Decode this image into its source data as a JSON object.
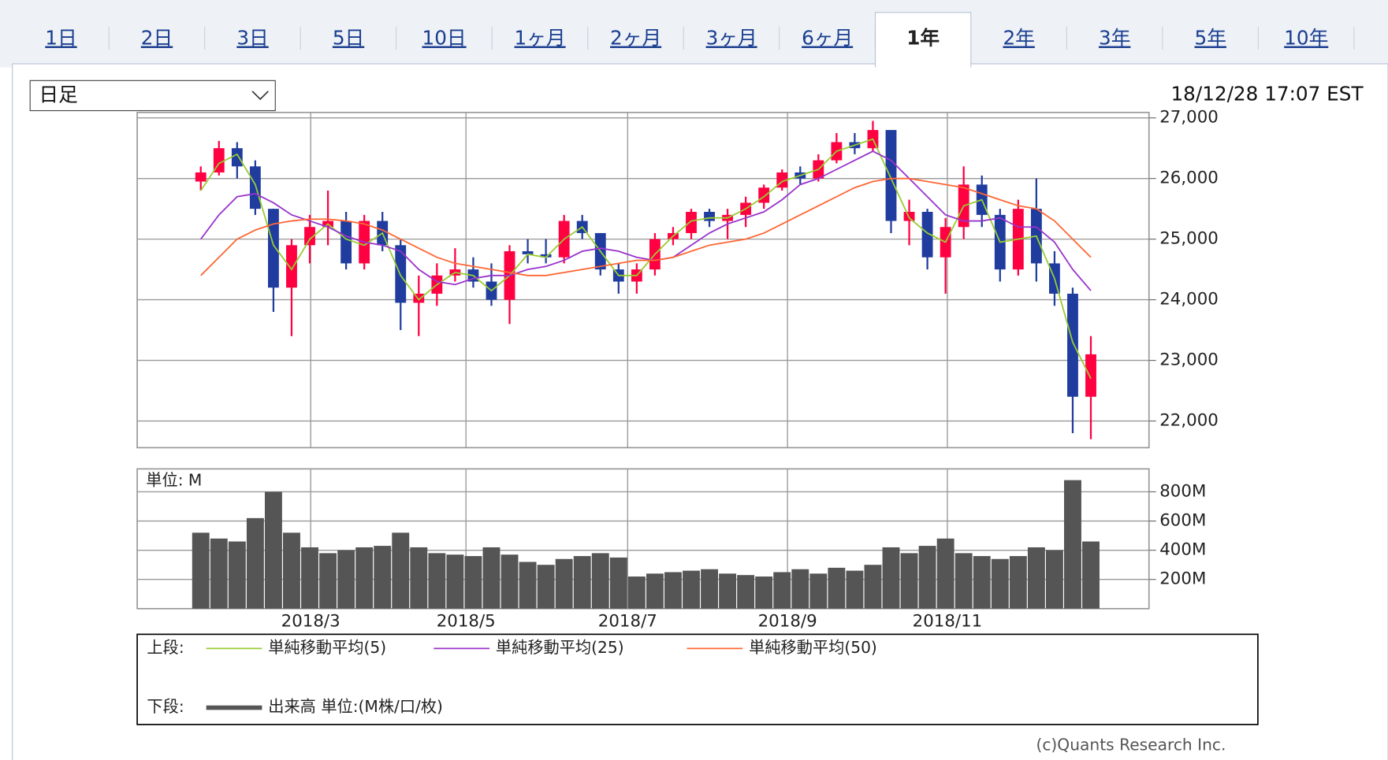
{
  "tabs": [
    "1日",
    "2日",
    "3日",
    "5日",
    "10日",
    "1ヶ月",
    "2ヶ月",
    "3ヶ月",
    "6ヶ月",
    "1年",
    "2年",
    "3年",
    "5年",
    "10年"
  ],
  "active_tab": 9,
  "period_select": "日足",
  "timestamp": "18/12/28 17:07 EST",
  "copyright": "(c)Quants Research Inc.",
  "chart_data": [
    {
      "type": "candlestick",
      "legend_label": "上段:",
      "x": [
        0,
        1,
        2,
        3,
        4,
        5,
        6,
        7,
        8,
        9,
        10,
        11,
        12,
        13,
        14,
        15,
        16,
        17,
        18,
        19,
        20,
        21,
        22,
        23,
        24,
        25,
        26,
        27,
        28,
        29,
        30,
        31,
        32,
        33,
        34,
        35,
        36,
        37,
        38,
        39,
        40,
        41,
        42,
        43,
        44,
        45,
        46,
        47,
        48,
        49
      ],
      "open": [
        25950,
        26100,
        26500,
        26200,
        25500,
        24200,
        24900,
        25200,
        25300,
        24600,
        25300,
        24900,
        23950,
        24100,
        24400,
        24500,
        24300,
        24000,
        24800,
        24750,
        24700,
        25300,
        25100,
        24500,
        24300,
        24500,
        25000,
        25100,
        25450,
        25300,
        25400,
        25600,
        25850,
        26100,
        26000,
        26300,
        26600,
        26500,
        26800,
        25300,
        25450,
        24700,
        25200,
        25900,
        25400,
        24500,
        25500,
        24600,
        24100,
        22400
      ],
      "high": [
        26200,
        26620,
        26600,
        26300,
        25500,
        25000,
        25400,
        25800,
        25450,
        25400,
        25450,
        25000,
        24400,
        24600,
        24850,
        24700,
        24600,
        24900,
        25000,
        25000,
        25400,
        25400,
        25100,
        24600,
        24600,
        25100,
        25200,
        25500,
        25500,
        25500,
        25700,
        25900,
        26150,
        26200,
        26400,
        26750,
        26750,
        26950,
        26800,
        25650,
        25500,
        25350,
        26200,
        26050,
        25500,
        25650,
        26000,
        24800,
        24200,
        23400
      ],
      "low": [
        25800,
        26050,
        26000,
        25400,
        23800,
        23400,
        24600,
        24900,
        24500,
        24500,
        24800,
        23500,
        23400,
        23900,
        24300,
        24200,
        23900,
        23600,
        24600,
        24600,
        24600,
        25000,
        24400,
        24100,
        24100,
        24400,
        24900,
        25000,
        25200,
        25000,
        25200,
        25500,
        25800,
        25900,
        25950,
        26250,
        26400,
        26450,
        25100,
        24900,
        24500,
        24100,
        25000,
        25200,
        24300,
        24400,
        24300,
        23900,
        21800,
        21700
      ],
      "close": [
        26100,
        26500,
        26200,
        25500,
        24200,
        24900,
        25200,
        25300,
        24600,
        25300,
        24900,
        23950,
        24100,
        24400,
        24500,
        24300,
        24000,
        24800,
        24750,
        24700,
        25300,
        25100,
        24500,
        24300,
        24500,
        25000,
        25100,
        25450,
        25300,
        25400,
        25600,
        25850,
        26100,
        26000,
        26300,
        26600,
        26500,
        26800,
        25300,
        25450,
        24700,
        25200,
        25900,
        25400,
        24500,
        25500,
        24600,
        24100,
        22400,
        23100
      ],
      "up_color": "#ff0040",
      "down_color": "#1f3c9e",
      "series": [
        {
          "name": "単純移動平均(5)",
          "color": "#99cc33",
          "values": [
            25800,
            26250,
            26400,
            25900,
            24900,
            24500,
            25000,
            25250,
            25000,
            24900,
            25100,
            24400,
            24000,
            24250,
            24450,
            24400,
            24150,
            24400,
            24750,
            24700,
            25000,
            25200,
            24800,
            24400,
            24400,
            24750,
            25050,
            25300,
            25350,
            25350,
            25500,
            25700,
            25950,
            26050,
            26150,
            26450,
            26550,
            26650,
            26000,
            25350,
            25100,
            24950,
            25550,
            25650,
            24950,
            25000,
            25050,
            24350,
            23300,
            22700
          ]
        },
        {
          "name": "単純移動平均(25)",
          "color": "#9933cc",
          "values": [
            25000,
            25400,
            25700,
            25750,
            25600,
            25400,
            25300,
            25200,
            25050,
            24950,
            24900,
            24800,
            24500,
            24300,
            24250,
            24350,
            24400,
            24400,
            24500,
            24550,
            24650,
            24800,
            24850,
            24800,
            24700,
            24650,
            24700,
            24900,
            25100,
            25250,
            25350,
            25450,
            25650,
            25900,
            26000,
            26150,
            26300,
            26450,
            26300,
            26000,
            25700,
            25400,
            25300,
            25300,
            25350,
            25200,
            25200,
            24950,
            24500,
            24150
          ]
        },
        {
          "name": "単純移動平均(50)",
          "color": "#ff6633",
          "values": [
            24400,
            24700,
            25000,
            25150,
            25250,
            25300,
            25330,
            25330,
            25300,
            25250,
            25150,
            25000,
            24850,
            24700,
            24600,
            24550,
            24500,
            24450,
            24400,
            24400,
            24450,
            24500,
            24550,
            24600,
            24650,
            24650,
            24700,
            24800,
            24900,
            24950,
            25000,
            25100,
            25250,
            25400,
            25550,
            25700,
            25850,
            25950,
            26000,
            26000,
            25950,
            25900,
            25850,
            25750,
            25650,
            25550,
            25500,
            25300,
            25000,
            24700
          ]
        }
      ],
      "xlim": [
        -3.5,
        52.2
      ],
      "xticks": [
        6.05,
        14.6,
        23.5,
        32.3,
        41.1
      ],
      "ylim": [
        21560,
        27090
      ],
      "yticks": [
        {
          "value": 22000,
          "label": "22,000"
        },
        {
          "value": 23000,
          "label": "23,000"
        },
        {
          "value": 24000,
          "label": "24,000"
        },
        {
          "value": 25000,
          "label": "25,000"
        },
        {
          "value": 26000,
          "label": "26,000"
        },
        {
          "value": 27000,
          "label": "27,000"
        }
      ],
      "grid": true
    },
    {
      "type": "bar",
      "unit_label": "単位: M",
      "legend_label": "下段:",
      "x": [
        0,
        1,
        2,
        3,
        4,
        5,
        6,
        7,
        8,
        9,
        10,
        11,
        12,
        13,
        14,
        15,
        16,
        17,
        18,
        19,
        20,
        21,
        22,
        23,
        24,
        25,
        26,
        27,
        28,
        29,
        30,
        31,
        32,
        33,
        34,
        35,
        36,
        37,
        38,
        39,
        40,
        41,
        42,
        43,
        44,
        45,
        46,
        47,
        48,
        49
      ],
      "series": [
        {
          "name": "出来高 単位:(M株/口/枚)",
          "color": "#555555",
          "values": [
            520,
            480,
            460,
            620,
            800,
            520,
            420,
            380,
            400,
            420,
            430,
            520,
            420,
            380,
            370,
            360,
            420,
            370,
            320,
            300,
            340,
            360,
            380,
            350,
            220,
            240,
            250,
            260,
            270,
            240,
            230,
            220,
            250,
            270,
            240,
            280,
            260,
            300,
            420,
            380,
            430,
            480,
            380,
            360,
            340,
            360,
            420,
            400,
            880,
            460
          ]
        }
      ],
      "xlim": [
        -3.5,
        52.2
      ],
      "xticks": [
        {
          "value": 6.05,
          "label": "2018/3"
        },
        {
          "value": 14.6,
          "label": "2018/5"
        },
        {
          "value": 23.5,
          "label": "2018/7"
        },
        {
          "value": 32.3,
          "label": "2018/9"
        },
        {
          "value": 41.1,
          "label": "2018/11"
        }
      ],
      "ylim": [
        0,
        957
      ],
      "yticks": [
        {
          "value": 200,
          "label": "200M"
        },
        {
          "value": 400,
          "label": "400M"
        },
        {
          "value": 600,
          "label": "600M"
        },
        {
          "value": 800,
          "label": "800M"
        }
      ],
      "grid": true
    }
  ]
}
